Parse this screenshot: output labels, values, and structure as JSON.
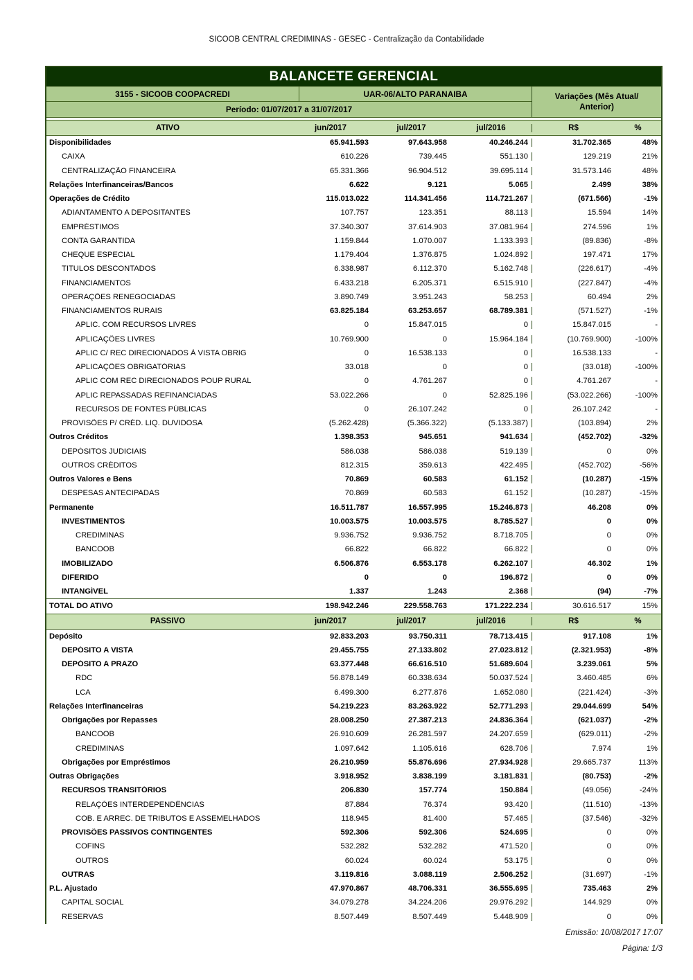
{
  "page_header": "SICOOB CENTRAL CREDIMINAS - GESEC - Centralização da Contabilidade",
  "report": {
    "title": "BALANCETE GERENCIAL",
    "entity": "3155 - SICOOB COOPACREDI",
    "unit": "UAR-06/ALTO PARANAIBA",
    "period": "Período: 01/07/2017 a 31/07/2017",
    "variations_header_line1": "Variações (Mês Atual/",
    "variations_header_line2": "Anterior)"
  },
  "columns": [
    "jun/2017",
    "jul/2017",
    "jul/2016"
  ],
  "variation_columns": [
    "R$",
    "%"
  ],
  "colors": {
    "title_band_bg": "#0c3301",
    "title_band_text": "#ffffff",
    "subheader_band_bg": "#adcb8f",
    "column_header_bg": "#cbe1b4",
    "border_green": "#2e4c19"
  },
  "sections": [
    {
      "name": "ATIVO",
      "rows": [
        {
          "l": "Disponibilidades",
          "i": 0,
          "v": [
            "65.941.593",
            "97.643.958",
            "40.246.244"
          ],
          "r": [
            "31.702.365",
            "48%"
          ],
          "lb": true,
          "vb": true,
          "rb": true
        },
        {
          "l": "CAIXA",
          "i": 1,
          "v": [
            "610.226",
            "739.445",
            "551.130"
          ],
          "r": [
            "129.219",
            "21%"
          ],
          "lb": false,
          "vb": false,
          "rb": false
        },
        {
          "l": "CENTRALIZAÇÃO FINANCEIRA",
          "i": 1,
          "v": [
            "65.331.366",
            "96.904.512",
            "39.695.114"
          ],
          "r": [
            "31.573.146",
            "48%"
          ],
          "lb": false,
          "vb": false,
          "rb": false
        },
        {
          "l": "Relações Interfinanceiras/Bancos",
          "i": 0,
          "v": [
            "6.622",
            "9.121",
            "5.065"
          ],
          "r": [
            "2.499",
            "38%"
          ],
          "lb": true,
          "vb": true,
          "rb": true
        },
        {
          "l": "Operações de Crédito",
          "i": 0,
          "v": [
            "115.013.022",
            "114.341.456",
            "114.721.267"
          ],
          "r": [
            "(671.566)",
            "-1%"
          ],
          "lb": true,
          "vb": true,
          "rb": true
        },
        {
          "l": "ADIANTAMENTO A DEPOSITANTES",
          "i": 1,
          "v": [
            "107.757",
            "123.351",
            "88.113"
          ],
          "r": [
            "15.594",
            "14%"
          ],
          "lb": false,
          "vb": false,
          "rb": false
        },
        {
          "l": "EMPRÉSTIMOS",
          "i": 1,
          "v": [
            "37.340.307",
            "37.614.903",
            "37.081.964"
          ],
          "r": [
            "274.596",
            "1%"
          ],
          "lb": false,
          "vb": false,
          "rb": false
        },
        {
          "l": "CONTA GARANTIDA",
          "i": 1,
          "v": [
            "1.159.844",
            "1.070.007",
            "1.133.393"
          ],
          "r": [
            "(89.836)",
            "-8%"
          ],
          "lb": false,
          "vb": false,
          "rb": false
        },
        {
          "l": "CHEQUE ESPECIAL",
          "i": 1,
          "v": [
            "1.179.404",
            "1.376.875",
            "1.024.892"
          ],
          "r": [
            "197.471",
            "17%"
          ],
          "lb": false,
          "vb": false,
          "rb": false
        },
        {
          "l": "TITULOS DESCONTADOS",
          "i": 1,
          "v": [
            "6.338.987",
            "6.112.370",
            "5.162.748"
          ],
          "r": [
            "(226.617)",
            "-4%"
          ],
          "lb": false,
          "vb": false,
          "rb": false
        },
        {
          "l": "FINANCIAMENTOS",
          "i": 1,
          "v": [
            "6.433.218",
            "6.205.371",
            "6.515.910"
          ],
          "r": [
            "(227.847)",
            "-4%"
          ],
          "lb": false,
          "vb": false,
          "rb": false
        },
        {
          "l": "OPERAÇÕES RENEGOCIADAS",
          "i": 1,
          "v": [
            "3.890.749",
            "3.951.243",
            "58.253"
          ],
          "r": [
            "60.494",
            "2%"
          ],
          "lb": false,
          "vb": false,
          "rb": false
        },
        {
          "l": "FINANCIAMENTOS RURAIS",
          "i": 1,
          "v": [
            "63.825.184",
            "63.253.657",
            "68.789.381"
          ],
          "r": [
            "(571.527)",
            "-1%"
          ],
          "lb": false,
          "vb": true,
          "rb": false
        },
        {
          "l": "APLIC. COM RECURSOS LIVRES",
          "i": 2,
          "v": [
            "0",
            "15.847.015",
            "0"
          ],
          "r": [
            "15.847.015",
            "-"
          ],
          "lb": false,
          "vb": false,
          "rb": false
        },
        {
          "l": "APLICAÇÕES LIVRES",
          "i": 2,
          "v": [
            "10.769.900",
            "0",
            "15.964.184"
          ],
          "r": [
            "(10.769.900)",
            "-100%"
          ],
          "lb": false,
          "vb": false,
          "rb": false
        },
        {
          "l": "APLIC C/ REC DIRECIONADOS À VISTA OBRIG",
          "i": 2,
          "v": [
            "0",
            "16.538.133",
            "0"
          ],
          "r": [
            "16.538.133",
            "-"
          ],
          "lb": false,
          "vb": false,
          "rb": false
        },
        {
          "l": "APLICAÇÕES OBRIGATÓRIAS",
          "i": 2,
          "v": [
            "33.018",
            "0",
            "0"
          ],
          "r": [
            "(33.018)",
            "-100%"
          ],
          "lb": false,
          "vb": false,
          "rb": false
        },
        {
          "l": "APLIC COM REC DIRECIONADOS POUP RURAL",
          "i": 2,
          "v": [
            "0",
            "4.761.267",
            "0"
          ],
          "r": [
            "4.761.267",
            "-"
          ],
          "lb": false,
          "vb": false,
          "rb": false
        },
        {
          "l": "APLIC REPASSADAS REFINANCIADAS",
          "i": 2,
          "v": [
            "53.022.266",
            "0",
            "52.825.196"
          ],
          "r": [
            "(53.022.266)",
            "-100%"
          ],
          "lb": false,
          "vb": false,
          "rb": false
        },
        {
          "l": "RECURSOS DE FONTES PÚBLICAS",
          "i": 2,
          "v": [
            "0",
            "26.107.242",
            "0"
          ],
          "r": [
            "26.107.242",
            "-"
          ],
          "lb": false,
          "vb": false,
          "rb": false
        },
        {
          "l": "PROVISÕES P/ CRÉD. LIQ. DUVIDOSA",
          "i": 1,
          "v": [
            "(5.262.428)",
            "(5.366.322)",
            "(5.133.387)"
          ],
          "r": [
            "(103.894)",
            "2%"
          ],
          "lb": false,
          "vb": false,
          "rb": false
        },
        {
          "l": "Outros Créditos",
          "i": 0,
          "v": [
            "1.398.353",
            "945.651",
            "941.634"
          ],
          "r": [
            "(452.702)",
            "-32%"
          ],
          "lb": true,
          "vb": true,
          "rb": true
        },
        {
          "l": "DEPÓSITOS JUDICIAIS",
          "i": 1,
          "v": [
            "586.038",
            "586.038",
            "519.139"
          ],
          "r": [
            "0",
            "0%"
          ],
          "lb": false,
          "vb": false,
          "rb": false
        },
        {
          "l": "OUTROS CRÉDITOS",
          "i": 1,
          "v": [
            "812.315",
            "359.613",
            "422.495"
          ],
          "r": [
            "(452.702)",
            "-56%"
          ],
          "lb": false,
          "vb": false,
          "rb": false
        },
        {
          "l": "Outros Valores e Bens",
          "i": 0,
          "v": [
            "70.869",
            "60.583",
            "61.152"
          ],
          "r": [
            "(10.287)",
            "-15%"
          ],
          "lb": true,
          "vb": true,
          "rb": true
        },
        {
          "l": "DESPESAS ANTECIPADAS",
          "i": 1,
          "v": [
            "70.869",
            "60.583",
            "61.152"
          ],
          "r": [
            "(10.287)",
            "-15%"
          ],
          "lb": false,
          "vb": false,
          "rb": false
        },
        {
          "l": "Permanente",
          "i": 0,
          "v": [
            "16.511.787",
            "16.557.995",
            "15.246.873"
          ],
          "r": [
            "46.208",
            "0%"
          ],
          "lb": true,
          "vb": true,
          "rb": true
        },
        {
          "l": "INVESTIMENTOS",
          "i": 1,
          "v": [
            "10.003.575",
            "10.003.575",
            "8.785.527"
          ],
          "r": [
            "0",
            "0%"
          ],
          "lb": true,
          "vb": true,
          "rb": true
        },
        {
          "l": "CREDIMINAS",
          "i": 2,
          "v": [
            "9.936.752",
            "9.936.752",
            "8.718.705"
          ],
          "r": [
            "0",
            "0%"
          ],
          "lb": false,
          "vb": false,
          "rb": false
        },
        {
          "l": "BANCOOB",
          "i": 2,
          "v": [
            "66.822",
            "66.822",
            "66.822"
          ],
          "r": [
            "0",
            "0%"
          ],
          "lb": false,
          "vb": false,
          "rb": false
        },
        {
          "l": "IMOBILIZADO",
          "i": 1,
          "v": [
            "6.506.876",
            "6.553.178",
            "6.262.107"
          ],
          "r": [
            "46.302",
            "1%"
          ],
          "lb": true,
          "vb": true,
          "rb": true
        },
        {
          "l": "DIFERIDO",
          "i": 1,
          "v": [
            "0",
            "0",
            "196.872"
          ],
          "r": [
            "0",
            "0%"
          ],
          "lb": true,
          "vb": true,
          "rb": true
        },
        {
          "l": "INTANGÍVEL",
          "i": 1,
          "v": [
            "1.337",
            "1.243",
            "2.368"
          ],
          "r": [
            "(94)",
            "-7%"
          ],
          "lb": true,
          "vb": true,
          "rb": true
        },
        {
          "l": "TOTAL DO ATIVO",
          "i": 0,
          "v": [
            "198.942.246",
            "229.558.763",
            "171.222.234"
          ],
          "r": [
            "30.616.517",
            "15%"
          ],
          "lb": true,
          "vb": true,
          "rb": false,
          "tl": true
        }
      ]
    },
    {
      "name": "PASSIVO",
      "rows": [
        {
          "l": "Depósito",
          "i": 0,
          "v": [
            "92.833.203",
            "93.750.311",
            "78.713.415"
          ],
          "r": [
            "917.108",
            "1%"
          ],
          "lb": true,
          "vb": true,
          "rb": true
        },
        {
          "l": "DEPÓSITO A VISTA",
          "i": 1,
          "v": [
            "29.455.755",
            "27.133.802",
            "27.023.812"
          ],
          "r": [
            "(2.321.953)",
            "-8%"
          ],
          "lb": true,
          "vb": true,
          "rb": true
        },
        {
          "l": "DEPÓSITO A PRAZO",
          "i": 1,
          "v": [
            "63.377.448",
            "66.616.510",
            "51.689.604"
          ],
          "r": [
            "3.239.061",
            "5%"
          ],
          "lb": true,
          "vb": true,
          "rb": true
        },
        {
          "l": "RDC",
          "i": 2,
          "v": [
            "56.878.149",
            "60.338.634",
            "50.037.524"
          ],
          "r": [
            "3.460.485",
            "6%"
          ],
          "lb": false,
          "vb": false,
          "rb": false
        },
        {
          "l": "LCA",
          "i": 2,
          "v": [
            "6.499.300",
            "6.277.876",
            "1.652.080"
          ],
          "r": [
            "(221.424)",
            "-3%"
          ],
          "lb": false,
          "vb": false,
          "rb": false
        },
        {
          "l": "Relações Interfinanceiras",
          "i": 0,
          "v": [
            "54.219.223",
            "83.263.922",
            "52.771.293"
          ],
          "r": [
            "29.044.699",
            "54%"
          ],
          "lb": true,
          "vb": true,
          "rb": true
        },
        {
          "l": "Obrigações por Repasses",
          "i": 1,
          "v": [
            "28.008.250",
            "27.387.213",
            "24.836.364"
          ],
          "r": [
            "(621.037)",
            "-2%"
          ],
          "lb": true,
          "vb": true,
          "rb": true
        },
        {
          "l": "BANCOOB",
          "i": 2,
          "v": [
            "26.910.609",
            "26.281.597",
            "24.207.659"
          ],
          "r": [
            "(629.011)",
            "-2%"
          ],
          "lb": false,
          "vb": false,
          "rb": false
        },
        {
          "l": "CREDIMINAS",
          "i": 2,
          "v": [
            "1.097.642",
            "1.105.616",
            "628.706"
          ],
          "r": [
            "7.974",
            "1%"
          ],
          "lb": false,
          "vb": false,
          "rb": false
        },
        {
          "l": "Obrigações por Empréstimos",
          "i": 1,
          "v": [
            "26.210.959",
            "55.876.696",
            "27.934.928"
          ],
          "r": [
            "29.665.737",
            "113%"
          ],
          "lb": true,
          "vb": true,
          "rb": false
        },
        {
          "l": "Outras Obrigações",
          "i": 0,
          "v": [
            "3.918.952",
            "3.838.199",
            "3.181.831"
          ],
          "r": [
            "(80.753)",
            "-2%"
          ],
          "lb": true,
          "vb": true,
          "rb": true
        },
        {
          "l": "RECURSOS TRANSITÓRIOS",
          "i": 1,
          "v": [
            "206.830",
            "157.774",
            "150.884"
          ],
          "r": [
            "(49.056)",
            "-24%"
          ],
          "lb": true,
          "vb": true,
          "rb": false
        },
        {
          "l": "RELAÇÕES INTERDEPENDÊNCIAS",
          "i": 2,
          "v": [
            "87.884",
            "76.374",
            "93.420"
          ],
          "r": [
            "(11.510)",
            "-13%"
          ],
          "lb": false,
          "vb": false,
          "rb": false
        },
        {
          "l": "COB. E ARREC. DE TRIBUTOS E ASSEMELHADOS",
          "i": 2,
          "v": [
            "118.945",
            "81.400",
            "57.465"
          ],
          "r": [
            "(37.546)",
            "-32%"
          ],
          "lb": false,
          "vb": false,
          "rb": false
        },
        {
          "l": "PROVISÕES PASSIVOS CONTINGENTES",
          "i": 1,
          "v": [
            "592.306",
            "592.306",
            "524.695"
          ],
          "r": [
            "0",
            "0%"
          ],
          "lb": true,
          "vb": true,
          "rb": false
        },
        {
          "l": "COFINS",
          "i": 2,
          "v": [
            "532.282",
            "532.282",
            "471.520"
          ],
          "r": [
            "0",
            "0%"
          ],
          "lb": false,
          "vb": false,
          "rb": false
        },
        {
          "l": "OUTROS",
          "i": 2,
          "v": [
            "60.024",
            "60.024",
            "53.175"
          ],
          "r": [
            "0",
            "0%"
          ],
          "lb": false,
          "vb": false,
          "rb": false
        },
        {
          "l": "OUTRAS",
          "i": 1,
          "v": [
            "3.119.816",
            "3.088.119",
            "2.506.252"
          ],
          "r": [
            "(31.697)",
            "-1%"
          ],
          "lb": true,
          "vb": true,
          "rb": false
        },
        {
          "l": "P.L. Ajustado",
          "i": 0,
          "v": [
            "47.970.867",
            "48.706.331",
            "36.555.695"
          ],
          "r": [
            "735.463",
            "2%"
          ],
          "lb": true,
          "vb": true,
          "rb": true
        },
        {
          "l": "CAPITAL SOCIAL",
          "i": 1,
          "v": [
            "34.079.278",
            "34.224.206",
            "29.976.292"
          ],
          "r": [
            "144.929",
            "0%"
          ],
          "lb": false,
          "vb": false,
          "rb": false
        },
        {
          "l": "RESERVAS",
          "i": 1,
          "v": [
            "8.507.449",
            "8.507.449",
            "5.448.909"
          ],
          "r": [
            "0",
            "0%"
          ],
          "lb": false,
          "vb": false,
          "rb": false
        }
      ]
    }
  ],
  "footer": {
    "emission": "Emissão: 10/08/2017 17:07",
    "page": "Página: 1/3"
  }
}
